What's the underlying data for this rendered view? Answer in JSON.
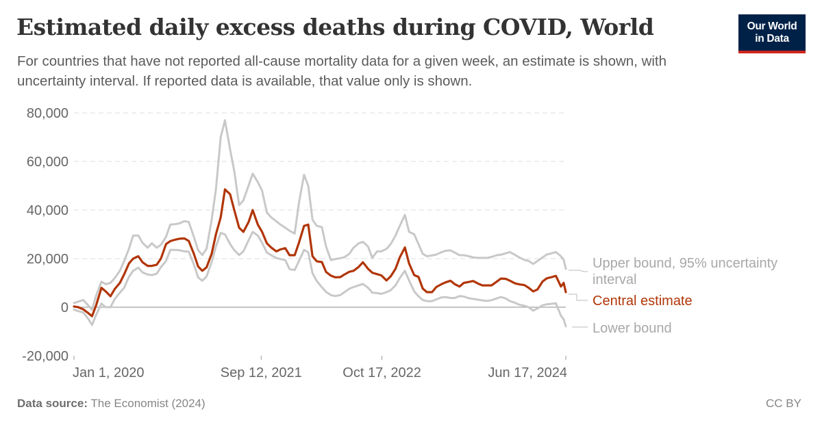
{
  "header": {
    "title": "Estimated daily excess deaths during COVID, World",
    "subtitle": "For countries that have not reported all-cause mortality data for a given week, an estimate is shown, with uncertainty interval. If reported data is available, that value only is shown.",
    "logo_line1": "Our World",
    "logo_line2": "in Data"
  },
  "footer": {
    "source_label": "Data source:",
    "source_text": "The Economist (2024)",
    "license": "CC BY"
  },
  "colors": {
    "central": "#b13507",
    "bounds": "#c8c8c8",
    "logo_bg": "#002147",
    "logo_bar": "#ce261e"
  },
  "chart_data": {
    "type": "line",
    "title": "Estimated daily excess deaths during COVID, World",
    "ylim": [
      -20000,
      80000
    ],
    "yticks": [
      -20000,
      0,
      20000,
      40000,
      60000,
      80000
    ],
    "ytick_labels": [
      "-20,000",
      "0",
      "20,000",
      "40,000",
      "60,000",
      "80,000"
    ],
    "xticks": [
      "2020-01-01",
      "2021-09-12",
      "2022-10-17",
      "2024-06-17"
    ],
    "xtick_labels": [
      "Jan 1, 2020",
      "Sep 12, 2021",
      "Oct 17, 2022",
      "Jun 17, 2024"
    ],
    "xlim": [
      "2020-01-01",
      "2024-06-17"
    ],
    "grid": "horizontal dashed",
    "legend": "right, inline labels at line ends",
    "x": [
      "2020-01-01",
      "2020-01-15",
      "2020-02-01",
      "2020-02-15",
      "2020-03-01",
      "2020-03-15",
      "2020-04-01",
      "2020-04-15",
      "2020-05-01",
      "2020-05-15",
      "2020-06-01",
      "2020-06-15",
      "2020-07-01",
      "2020-07-15",
      "2020-08-01",
      "2020-08-15",
      "2020-09-01",
      "2020-09-15",
      "2020-10-01",
      "2020-10-15",
      "2020-11-01",
      "2020-11-15",
      "2020-12-01",
      "2020-12-15",
      "2021-01-01",
      "2021-01-15",
      "2021-02-01",
      "2021-02-15",
      "2021-03-01",
      "2021-03-15",
      "2021-04-01",
      "2021-04-15",
      "2021-05-01",
      "2021-05-15",
      "2021-06-01",
      "2021-06-15",
      "2021-07-01",
      "2021-07-15",
      "2021-08-01",
      "2021-08-15",
      "2021-09-01",
      "2021-09-15",
      "2021-10-01",
      "2021-10-15",
      "2021-11-01",
      "2021-11-15",
      "2021-12-01",
      "2021-12-15",
      "2022-01-01",
      "2022-01-15",
      "2022-02-01",
      "2022-02-15",
      "2022-03-01",
      "2022-03-15",
      "2022-04-01",
      "2022-04-15",
      "2022-05-01",
      "2022-05-15",
      "2022-06-01",
      "2022-06-15",
      "2022-07-01",
      "2022-07-15",
      "2022-08-01",
      "2022-08-15",
      "2022-09-01",
      "2022-09-15",
      "2022-10-01",
      "2022-10-15",
      "2022-11-01",
      "2022-11-15",
      "2022-12-01",
      "2022-12-15",
      "2023-01-01",
      "2023-01-15",
      "2023-02-01",
      "2023-02-15",
      "2023-03-01",
      "2023-03-15",
      "2023-04-01",
      "2023-04-15",
      "2023-05-01",
      "2023-05-15",
      "2023-06-01",
      "2023-06-15",
      "2023-07-01",
      "2023-07-15",
      "2023-08-01",
      "2023-08-15",
      "2023-09-01",
      "2023-09-15",
      "2023-10-01",
      "2023-10-15",
      "2023-11-01",
      "2023-11-15",
      "2023-12-01",
      "2023-12-15",
      "2024-01-01",
      "2024-01-15",
      "2024-02-01",
      "2024-02-15",
      "2024-03-01",
      "2024-03-15",
      "2024-04-01",
      "2024-04-15",
      "2024-05-01",
      "2024-05-15",
      "2024-06-01",
      "2024-06-10",
      "2024-06-17"
    ],
    "series": [
      {
        "name": "Upper bound, 95% uncertainty interval",
        "color": "#c8c8c8",
        "values": [
          1700,
          2300,
          3000,
          1000,
          -1000,
          5000,
          10500,
          9500,
          10000,
          12000,
          15000,
          19000,
          24000,
          29500,
          29500,
          26500,
          24500,
          26300,
          24500,
          25700,
          29000,
          34000,
          34200,
          34500,
          35400,
          35100,
          29000,
          23500,
          21500,
          24000,
          36000,
          48500,
          70000,
          77000,
          65000,
          56000,
          42000,
          44000,
          50000,
          55000,
          51500,
          48000,
          39000,
          37000,
          35400,
          34000,
          32700,
          31500,
          30300,
          43000,
          54500,
          50000,
          36000,
          33500,
          33000,
          25000,
          19400,
          19800,
          20200,
          20600,
          22000,
          24500,
          26300,
          26900,
          25000,
          20300,
          23000,
          23000,
          24000,
          26000,
          29500,
          33500,
          38000,
          31000,
          30000,
          26000,
          22000,
          21000,
          21300,
          21700,
          22600,
          23200,
          23400,
          22500,
          21400,
          21400,
          21000,
          20500,
          20300,
          20300,
          20300,
          20700,
          21400,
          21600,
          22200,
          22700,
          21500,
          20500,
          19500,
          19000,
          17800,
          19000,
          20500,
          21700,
          22200,
          22700,
          21000,
          19500,
          15800
        ]
      },
      {
        "name": "Central estimate",
        "color": "#b13507",
        "values": [
          300,
          0,
          -900,
          -2200,
          -3700,
          1000,
          8000,
          6500,
          4500,
          7500,
          10000,
          13500,
          18000,
          20000,
          21000,
          18500,
          17000,
          17000,
          17500,
          20000,
          26000,
          27200,
          27800,
          28200,
          28300,
          27300,
          22000,
          16800,
          15000,
          16400,
          22000,
          30000,
          37000,
          48500,
          46500,
          40000,
          32700,
          31000,
          35000,
          40000,
          34000,
          31000,
          26300,
          24600,
          23000,
          23800,
          24300,
          21400,
          21400,
          26500,
          33500,
          34000,
          21000,
          18900,
          18600,
          14500,
          13000,
          12300,
          12400,
          13500,
          14600,
          15000,
          16600,
          18500,
          15800,
          14200,
          13600,
          13100,
          11000,
          12700,
          15800,
          20500,
          24600,
          18000,
          13200,
          12500,
          7700,
          6200,
          6200,
          8300,
          9400,
          10200,
          10900,
          9500,
          8500,
          10000,
          10400,
          10800,
          9700,
          9000,
          9000,
          9000,
          10500,
          11800,
          11700,
          10900,
          9800,
          9400,
          9100,
          8000,
          6500,
          7300,
          10600,
          11900,
          12400,
          12900,
          8500,
          10000,
          6200
        ]
      },
      {
        "name": "Lower bound",
        "color": "#c8c8c8",
        "values": [
          -1000,
          -1600,
          -2200,
          -4400,
          -7300,
          -3000,
          1500,
          0,
          0,
          3400,
          6000,
          8000,
          12500,
          15000,
          16300,
          14300,
          13500,
          13200,
          13800,
          16500,
          19000,
          23600,
          23600,
          23500,
          23000,
          22900,
          17600,
          12300,
          10900,
          12600,
          18600,
          25000,
          30600,
          30000,
          26000,
          23500,
          21500,
          23000,
          27500,
          31000,
          29500,
          26500,
          22500,
          21400,
          20300,
          19800,
          19400,
          15700,
          15300,
          19000,
          23600,
          22600,
          14000,
          10800,
          8200,
          6300,
          5000,
          4600,
          5000,
          6200,
          7600,
          8300,
          9000,
          9600,
          8000,
          6000,
          5800,
          5500,
          6200,
          7000,
          9000,
          12000,
          15000,
          11000,
          6500,
          4500,
          3000,
          2500,
          2500,
          3200,
          4000,
          4200,
          3800,
          3800,
          4600,
          4400,
          3700,
          3400,
          3100,
          2800,
          2600,
          2900,
          3600,
          4200,
          3600,
          2500,
          1800,
          1000,
          600,
          0,
          -1400,
          -500,
          800,
          1200,
          1400,
          1600,
          -3500,
          -5000,
          -7900
        ]
      }
    ],
    "labels": {
      "upper_line1": "Upper bound, 95% uncertainty",
      "upper_line2": "interval",
      "central": "Central estimate",
      "lower": "Lower bound"
    }
  }
}
